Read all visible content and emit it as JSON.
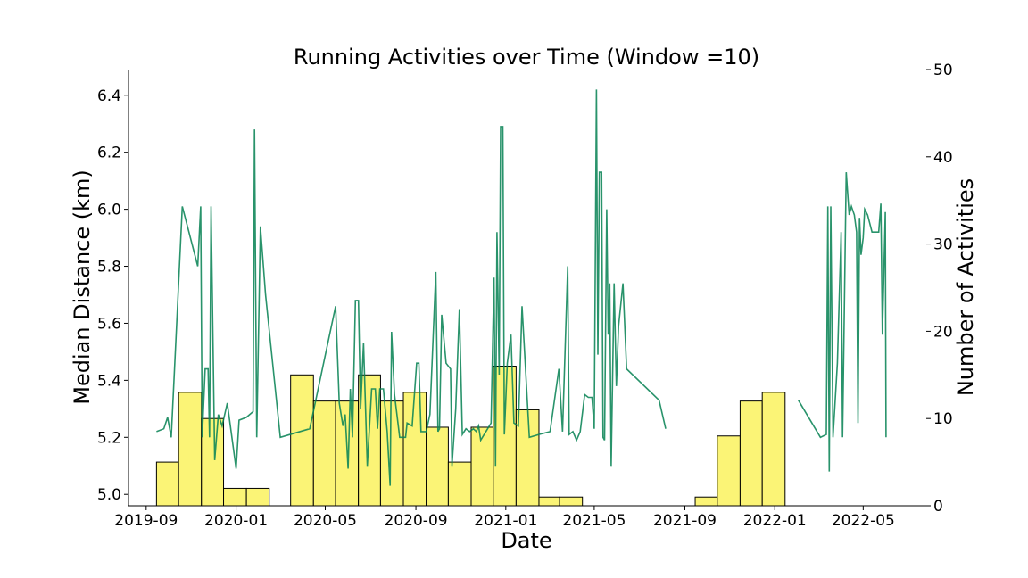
{
  "chart_data": {
    "type": "line",
    "title": "Running Activities over Time (Window =10)",
    "xlabel": "Date",
    "ylabel_left": "Median Distance (km)",
    "ylabel_right": "Number of Activities",
    "x_ticks": [
      "2019-09",
      "2020-01",
      "2020-05",
      "2020-09",
      "2021-01",
      "2021-05",
      "2021-09",
      "2022-01",
      "2022-05"
    ],
    "y_left_ticks": [
      "5.0",
      "5.2",
      "5.4",
      "5.6",
      "5.8",
      "6.0",
      "6.2",
      "6.4"
    ],
    "y_right_ticks": [
      "0",
      "10",
      "20",
      "30",
      "40",
      "50"
    ],
    "xlim": [
      "2019-08-08",
      "2022-07-28"
    ],
    "ylim_left": [
      4.96,
      6.49
    ],
    "ylim_right": [
      0,
      50
    ],
    "grid": false,
    "colors": {
      "line": "#0b8457",
      "bar_fill": "#fbf36f",
      "bar_edge": "#000000"
    },
    "histogram": {
      "name": "Number of Activities",
      "bins": [
        {
          "start": "2019-09-15",
          "end": "2019-10-15",
          "count": 5
        },
        {
          "start": "2019-10-15",
          "end": "2019-11-15",
          "count": 13
        },
        {
          "start": "2019-11-15",
          "end": "2019-12-15",
          "count": 10
        },
        {
          "start": "2019-12-15",
          "end": "2020-01-15",
          "count": 2
        },
        {
          "start": "2020-01-15",
          "end": "2020-02-15",
          "count": 2
        },
        {
          "start": "2020-02-15",
          "end": "2020-03-15",
          "count": 0
        },
        {
          "start": "2020-03-15",
          "end": "2020-04-15",
          "count": 15
        },
        {
          "start": "2020-04-15",
          "end": "2020-05-15",
          "count": 12
        },
        {
          "start": "2020-05-15",
          "end": "2020-06-15",
          "count": 12
        },
        {
          "start": "2020-06-15",
          "end": "2020-07-15",
          "count": 15
        },
        {
          "start": "2020-07-15",
          "end": "2020-08-15",
          "count": 12
        },
        {
          "start": "2020-08-15",
          "end": "2020-09-15",
          "count": 13
        },
        {
          "start": "2020-09-15",
          "end": "2020-10-15",
          "count": 9
        },
        {
          "start": "2020-10-15",
          "end": "2020-11-15",
          "count": 5
        },
        {
          "start": "2020-11-15",
          "end": "2020-12-15",
          "count": 9
        },
        {
          "start": "2020-12-15",
          "end": "2021-01-15",
          "count": 16
        },
        {
          "start": "2021-01-15",
          "end": "2021-02-15",
          "count": 11
        },
        {
          "start": "2021-02-15",
          "end": "2021-03-15",
          "count": 1
        },
        {
          "start": "2021-03-15",
          "end": "2021-04-15",
          "count": 1
        },
        {
          "start": "2021-09-15",
          "end": "2021-10-15",
          "count": 1
        },
        {
          "start": "2021-10-15",
          "end": "2021-11-15",
          "count": 8
        },
        {
          "start": "2021-11-15",
          "end": "2021-12-15",
          "count": 12
        },
        {
          "start": "2021-12-15",
          "end": "2022-01-15",
          "count": 13
        }
      ]
    },
    "line_series": {
      "name": "Median Distance (km)",
      "points": [
        [
          "2019-09-15",
          5.22
        ],
        [
          "2019-09-25",
          5.23
        ],
        [
          "2019-09-30",
          5.27
        ],
        [
          "2019-10-05",
          5.2
        ],
        [
          "2019-10-20",
          6.01
        ],
        [
          "2019-11-10",
          5.8
        ],
        [
          "2019-11-14",
          6.01
        ],
        [
          "2019-11-16",
          5.2
        ],
        [
          "2019-11-20",
          5.44
        ],
        [
          "2019-11-24",
          5.44
        ],
        [
          "2019-11-26",
          5.2
        ],
        [
          "2019-11-28",
          6.01
        ],
        [
          "2019-12-03",
          5.12
        ],
        [
          "2019-12-08",
          5.28
        ],
        [
          "2019-12-13",
          5.24
        ],
        [
          "2019-12-20",
          5.32
        ],
        [
          "2020-01-01",
          5.09
        ],
        [
          "2020-01-05",
          5.26
        ],
        [
          "2020-01-15",
          5.27
        ],
        [
          "2020-01-24",
          5.29
        ],
        [
          "2020-01-26",
          6.28
        ],
        [
          "2020-01-29",
          5.2
        ],
        [
          "2020-02-03",
          5.94
        ],
        [
          "2020-02-10",
          5.7
        ],
        [
          "2020-03-01",
          5.2
        ],
        [
          "2020-04-10",
          5.23
        ],
        [
          "2020-05-15",
          5.66
        ],
        [
          "2020-05-20",
          5.32
        ],
        [
          "2020-05-25",
          5.24
        ],
        [
          "2020-05-28",
          5.28
        ],
        [
          "2020-06-01",
          5.09
        ],
        [
          "2020-06-04",
          5.37
        ],
        [
          "2020-06-07",
          5.2
        ],
        [
          "2020-06-11",
          5.68
        ],
        [
          "2020-06-15",
          5.68
        ],
        [
          "2020-06-18",
          5.3
        ],
        [
          "2020-06-22",
          5.53
        ],
        [
          "2020-06-27",
          5.1
        ],
        [
          "2020-07-03",
          5.37
        ],
        [
          "2020-07-08",
          5.37
        ],
        [
          "2020-07-11",
          5.23
        ],
        [
          "2020-07-14",
          5.37
        ],
        [
          "2020-07-19",
          5.37
        ],
        [
          "2020-07-24",
          5.22
        ],
        [
          "2020-07-28",
          5.03
        ],
        [
          "2020-07-30",
          5.57
        ],
        [
          "2020-08-03",
          5.35
        ],
        [
          "2020-08-10",
          5.2
        ],
        [
          "2020-08-18",
          5.2
        ],
        [
          "2020-08-20",
          5.25
        ],
        [
          "2020-08-27",
          5.24
        ],
        [
          "2020-09-02",
          5.46
        ],
        [
          "2020-09-05",
          5.46
        ],
        [
          "2020-09-08",
          5.22
        ],
        [
          "2020-09-15",
          5.22
        ],
        [
          "2020-09-20",
          5.28
        ],
        [
          "2020-09-28",
          5.78
        ],
        [
          "2020-10-01",
          5.22
        ],
        [
          "2020-10-03",
          5.23
        ],
        [
          "2020-10-06",
          5.63
        ],
        [
          "2020-10-12",
          5.46
        ],
        [
          "2020-10-18",
          5.44
        ],
        [
          "2020-10-20",
          5.1
        ],
        [
          "2020-10-25",
          5.3
        ],
        [
          "2020-10-30",
          5.65
        ],
        [
          "2020-11-03",
          5.21
        ],
        [
          "2020-11-08",
          5.23
        ],
        [
          "2020-11-13",
          5.22
        ],
        [
          "2020-11-18",
          5.23
        ],
        [
          "2020-11-22",
          5.22
        ],
        [
          "2020-11-25",
          5.24
        ],
        [
          "2020-11-28",
          5.19
        ],
        [
          "2020-12-05",
          5.22
        ],
        [
          "2020-12-12",
          5.25
        ],
        [
          "2020-12-16",
          5.76
        ],
        [
          "2020-12-18",
          5.1
        ],
        [
          "2020-12-20",
          5.92
        ],
        [
          "2020-12-23",
          5.42
        ],
        [
          "2020-12-25",
          6.29
        ],
        [
          "2020-12-28",
          6.29
        ],
        [
          "2020-12-30",
          5.21
        ],
        [
          "2021-01-03",
          5.46
        ],
        [
          "2021-01-08",
          5.56
        ],
        [
          "2021-01-12",
          5.25
        ],
        [
          "2021-01-18",
          5.24
        ],
        [
          "2021-01-23",
          5.66
        ],
        [
          "2021-02-02",
          5.2
        ],
        [
          "2021-02-15",
          5.21
        ],
        [
          "2021-03-02",
          5.22
        ],
        [
          "2021-03-14",
          5.44
        ],
        [
          "2021-03-19",
          5.22
        ],
        [
          "2021-03-26",
          5.8
        ],
        [
          "2021-03-28",
          5.21
        ],
        [
          "2021-04-02",
          5.22
        ],
        [
          "2021-04-07",
          5.19
        ],
        [
          "2021-04-12",
          5.22
        ],
        [
          "2021-04-18",
          5.35
        ],
        [
          "2021-04-23",
          5.34
        ],
        [
          "2021-04-28",
          5.34
        ],
        [
          "2021-05-01",
          5.23
        ],
        [
          "2021-05-04",
          6.42
        ],
        [
          "2021-05-06",
          5.49
        ],
        [
          "2021-05-08",
          6.13
        ],
        [
          "2021-05-11",
          6.13
        ],
        [
          "2021-05-13",
          5.2
        ],
        [
          "2021-05-15",
          5.19
        ],
        [
          "2021-05-18",
          6.0
        ],
        [
          "2021-05-20",
          5.56
        ],
        [
          "2021-05-22",
          5.74
        ],
        [
          "2021-05-24",
          5.1
        ],
        [
          "2021-05-28",
          5.74
        ],
        [
          "2021-05-31",
          5.38
        ],
        [
          "2021-06-03",
          5.59
        ],
        [
          "2021-06-09",
          5.74
        ],
        [
          "2021-06-14",
          5.44
        ],
        [
          "2021-07-28",
          5.33
        ],
        [
          "2021-08-06",
          5.23
        ],
        null,
        [
          "2022-02-02",
          5.33
        ],
        [
          "2022-03-04",
          5.2
        ],
        [
          "2022-03-12",
          5.21
        ],
        [
          "2022-03-14",
          6.01
        ],
        [
          "2022-03-16",
          5.08
        ],
        [
          "2022-03-18",
          6.01
        ],
        [
          "2022-03-21",
          5.2
        ],
        [
          "2022-03-27",
          5.46
        ],
        [
          "2022-04-01",
          5.92
        ],
        [
          "2022-04-03",
          5.2
        ],
        [
          "2022-04-08",
          6.13
        ],
        [
          "2022-04-12",
          5.98
        ],
        [
          "2022-04-15",
          6.01
        ],
        [
          "2022-04-19",
          5.98
        ],
        [
          "2022-04-22",
          5.92
        ],
        [
          "2022-04-24",
          5.25
        ],
        [
          "2022-04-26",
          5.97
        ],
        [
          "2022-04-28",
          5.84
        ],
        [
          "2022-05-01",
          5.9
        ],
        [
          "2022-05-03",
          6.0
        ],
        [
          "2022-05-07",
          5.98
        ],
        [
          "2022-05-13",
          5.92
        ],
        [
          "2022-05-19",
          5.92
        ],
        [
          "2022-05-22",
          5.92
        ],
        [
          "2022-05-25",
          6.02
        ],
        [
          "2022-05-27",
          5.56
        ],
        [
          "2022-05-31",
          5.99
        ],
        [
          "2022-06-01",
          5.2
        ]
      ]
    }
  }
}
